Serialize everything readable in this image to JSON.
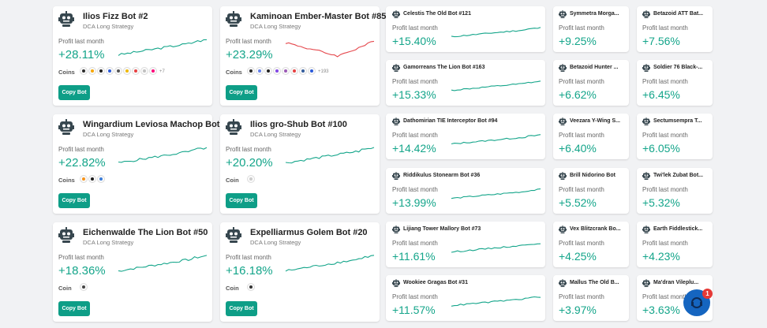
{
  "large_cards": [
    {
      "name": "Ilios Fizz Bot #2",
      "strategy": "DCA Long Strategy",
      "profit_label": "Profit last month",
      "profit": "+28.11%",
      "coins_label": "Coins",
      "coins_more": "+7",
      "button": "Copy Bot"
    },
    {
      "name": "Kaminoan Ember-Master Bot #85",
      "strategy": "DCA Long Strategy",
      "profit_label": "Profit last month",
      "profit": "+23.29%",
      "coins_label": "Coins",
      "coins_more": "+193",
      "button": "Copy Bot"
    },
    {
      "name": "Wingardium Leviosa Machop Bot ...",
      "strategy": "DCA Long Strategy",
      "profit_label": "Profit last month",
      "profit": "+22.82%",
      "coins_label": "Coins",
      "button": "Copy Bot"
    },
    {
      "name": "Ilios gro-Shub Bot #100",
      "strategy": "DCA Long Strategy",
      "profit_label": "Profit last month",
      "profit": "+20.20%",
      "coins_label": "Coin",
      "button": "Copy Bot"
    },
    {
      "name": "Eichenwalde The Lion Bot #50",
      "strategy": "DCA Long Strategy",
      "profit_label": "Profit last month",
      "profit": "+18.36%",
      "coins_label": "Coin",
      "button": "Copy Bot"
    },
    {
      "name": "Expelliarmus Golem Bot #20",
      "strategy": "DCA Long Strategy",
      "profit_label": "Profit last month",
      "profit": "+16.18%",
      "coins_label": "Coin",
      "button": "Copy Bot"
    }
  ],
  "medium_cards": [
    {
      "name": "Celestis The Old Bot #121",
      "profit_label": "Profit last month",
      "profit": "+15.40%"
    },
    {
      "name": "Gamorreans The Lion Bot #163",
      "profit_label": "Profit last month",
      "profit": "+15.33%"
    },
    {
      "name": "Dathomirian TIE Interceptor Bot #94",
      "profit_label": "Profit last month",
      "profit": "+14.42%"
    },
    {
      "name": "Riddikulus Stonearm Bot #36",
      "profit_label": "Profit last month",
      "profit": "+13.99%"
    },
    {
      "name": "Lijiang Tower Mallory Bot #73",
      "profit_label": "Profit last month",
      "profit": "+11.61%"
    },
    {
      "name": "Wookiee Gragas Bot #31",
      "profit_label": "Profit last month",
      "profit": "+11.57%"
    }
  ],
  "small_cards": [
    {
      "name": "Symmetra Morga...",
      "profit_label": "Profit last month",
      "profit": "+9.25%"
    },
    {
      "name": "Betazoid ATT Bat...",
      "profit_label": "Profit last month",
      "profit": "+7.56%"
    },
    {
      "name": "Betazoid Hunter ...",
      "profit_label": "Profit last month",
      "profit": "+6.62%"
    },
    {
      "name": "Soldier 76 Black-...",
      "profit_label": "Profit last month",
      "profit": "+6.45%"
    },
    {
      "name": "Veezara Y-Wing S...",
      "profit_label": "Profit last month",
      "profit": "+6.40%"
    },
    {
      "name": "Sectumsempra T...",
      "profit_label": "Profit last month",
      "profit": "+6.05%"
    },
    {
      "name": "Brill Nidorino Bot",
      "profit_label": "Profit last month",
      "profit": "+5.52%"
    },
    {
      "name": "Twi'lek Zubat Bot...",
      "profit_label": "Profit last month",
      "profit": "+5.32%"
    },
    {
      "name": "Vex Blitzcrank Bo...",
      "profit_label": "Profit last month",
      "profit": "+4.25%"
    },
    {
      "name": "Earth Fiddlestick...",
      "profit_label": "Profit last month",
      "profit": "+4.23%"
    },
    {
      "name": "Mallus The Old B...",
      "profit_label": "Profit last month",
      "profit": "+3.97%"
    },
    {
      "name": "Ma'dran Vileplu...",
      "profit_label": "Profit last month",
      "profit": "+3.63%"
    }
  ],
  "chat_badge": "1"
}
